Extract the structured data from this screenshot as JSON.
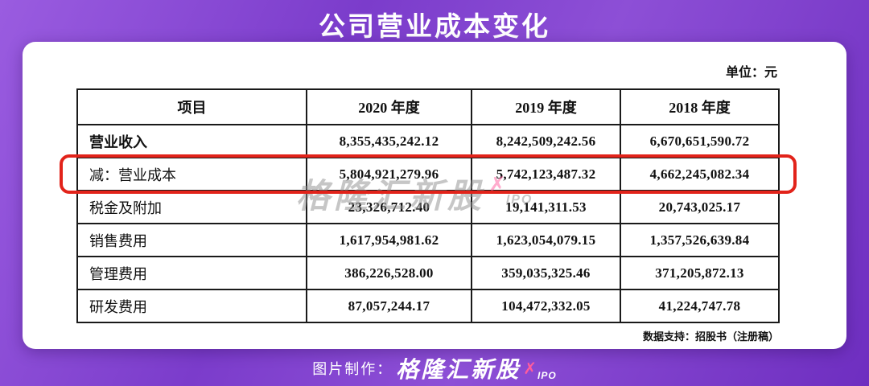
{
  "page": {
    "title": "公司营业成本变化",
    "unit_label": "单位：元",
    "source_note": "数据支持：招股书（注册稿）",
    "watermark": {
      "text": "格隆汇新股",
      "mark": "✗",
      "suffix": "IPO"
    },
    "footer": {
      "prefix": "图片制作：",
      "brand": "格隆汇新股",
      "mark": "✗",
      "suffix": "IPO"
    }
  },
  "chart_data": {
    "type": "table",
    "title": "公司营业成本变化",
    "unit": "元",
    "columns": [
      "项目",
      "2020 年度",
      "2019 年度",
      "2018 年度"
    ],
    "rows": [
      {
        "label": "营业收入",
        "values": [
          "8,355,435,242.12",
          "8,242,509,242.56",
          "6,670,651,590.72"
        ],
        "bold": true,
        "highlight": false
      },
      {
        "label": "减：营业成本",
        "values": [
          "5,804,921,279.96",
          "5,742,123,487.32",
          "4,662,245,082.34"
        ],
        "bold": false,
        "highlight": true
      },
      {
        "label": "税金及附加",
        "values": [
          "23,326,712.40",
          "19,141,311.53",
          "20,743,025.17"
        ],
        "bold": false,
        "highlight": false
      },
      {
        "label": "销售费用",
        "values": [
          "1,617,954,981.62",
          "1,623,054,079.15",
          "1,357,526,639.84"
        ],
        "bold": false,
        "highlight": false
      },
      {
        "label": "管理费用",
        "values": [
          "386,226,528.00",
          "359,035,325.46",
          "371,205,872.13"
        ],
        "bold": false,
        "highlight": false
      },
      {
        "label": "研发费用",
        "values": [
          "87,057,244.17",
          "104,472,332.05",
          "41,224,747.78"
        ],
        "bold": false,
        "highlight": false
      }
    ],
    "highlight_row": "减：营业成本"
  },
  "colors": {
    "background_purple_light": "#9a5ce0",
    "background_purple_dark": "#6e2ec0",
    "card_bg": "#ffffff",
    "table_border": "#1a1a1a",
    "highlight_red": "#e2231a",
    "brand_pink": "#ff5c9d",
    "watermark_gray": "#8f8f8f"
  }
}
